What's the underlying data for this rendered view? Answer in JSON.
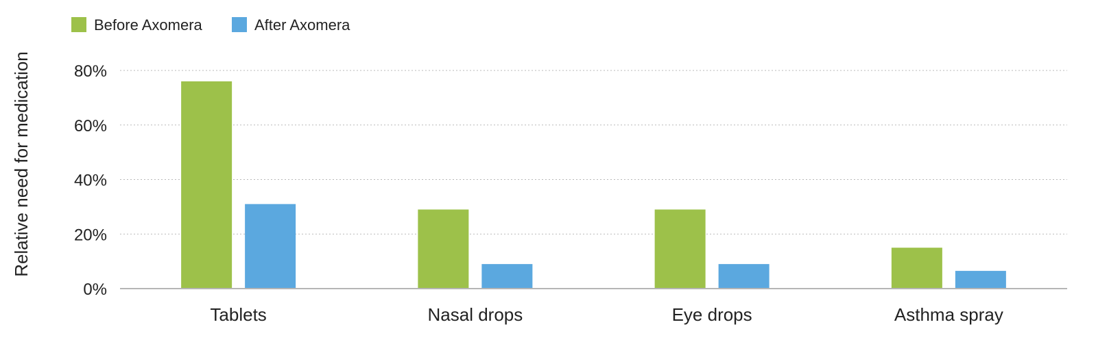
{
  "chart_data": {
    "type": "bar",
    "categories": [
      "Tablets",
      "Nasal drops",
      "Eye drops",
      "Asthma spray"
    ],
    "series": [
      {
        "name": "Before Axomera",
        "values": [
          76,
          29,
          29,
          15
        ],
        "color": "#9dc14a"
      },
      {
        "name": "After Axomera",
        "values": [
          31,
          9,
          9,
          6.5
        ],
        "color": "#5ba8df"
      }
    ],
    "ylabel": "Relative need for medication",
    "xlabel": "",
    "title": "",
    "ylim": [
      0,
      80
    ],
    "yticks": [
      0,
      20,
      40,
      60,
      80
    ],
    "ytick_labels": [
      "0%",
      "20%",
      "40%",
      "60%",
      "80%"
    ],
    "grid": true,
    "legend_position": "top-left"
  }
}
